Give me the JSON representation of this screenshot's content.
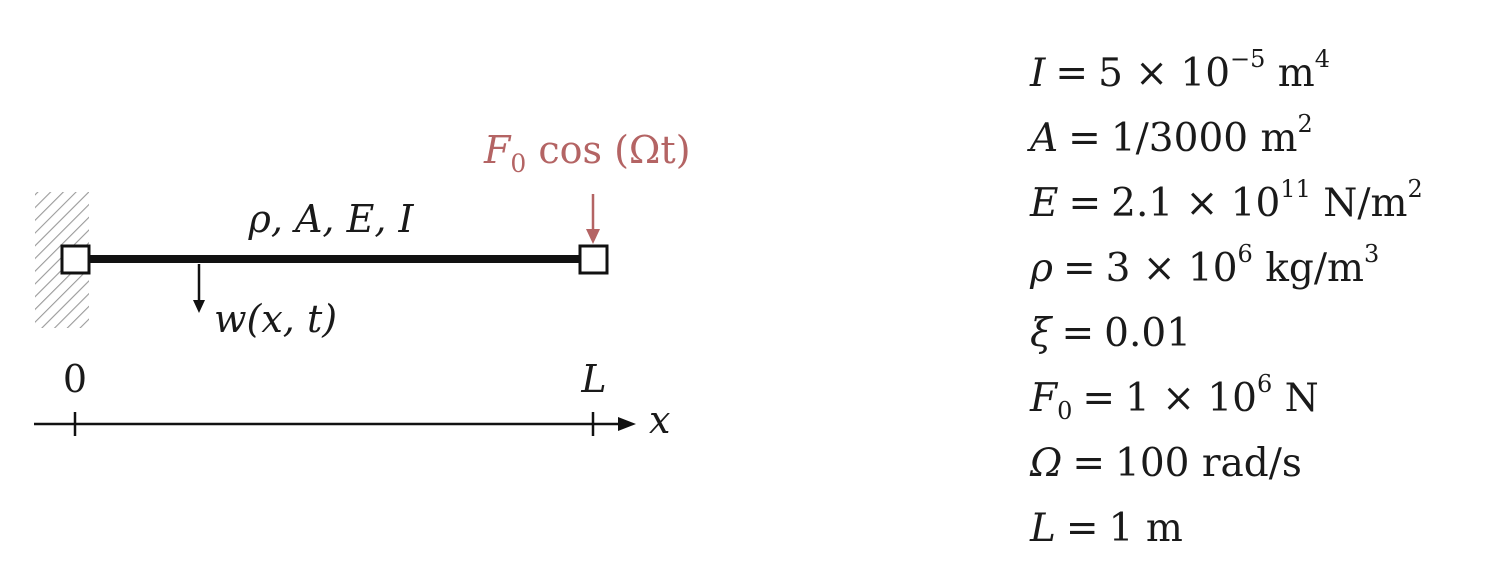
{
  "diagram": {
    "beam_properties": "ρ, A, E, I",
    "load_label": {
      "symbol": "F",
      "subscript": "0",
      "expr": " cos (Ωt)"
    },
    "deflection_label": "w(x, t)",
    "axis_start": "0",
    "axis_end": "L",
    "axis_var": "x",
    "load_color": "#b46464"
  },
  "parameters": [
    {
      "lhs": "I",
      "lhs_sub": "",
      "rhs": "5 × 10",
      "sup": "−5",
      "unit": " m",
      "unit_sup": "4"
    },
    {
      "lhs": "A",
      "lhs_sub": "",
      "rhs": "1/3000",
      "sup": "",
      "unit": " m",
      "unit_sup": "2"
    },
    {
      "lhs": "E",
      "lhs_sub": "",
      "rhs": "2.1 × 10",
      "sup": "11",
      "unit": " N/m",
      "unit_sup": "2"
    },
    {
      "lhs": "ρ",
      "lhs_sub": "",
      "rhs": "3 × 10",
      "sup": "6",
      "unit": " kg/m",
      "unit_sup": "3"
    },
    {
      "lhs": "ξ",
      "lhs_sub": "",
      "rhs": "0.01",
      "sup": "",
      "unit": "",
      "unit_sup": ""
    },
    {
      "lhs": "F",
      "lhs_sub": "0",
      "rhs": "1 × 10",
      "sup": "6",
      "unit": " N",
      "unit_sup": ""
    },
    {
      "lhs": "Ω",
      "lhs_sub": "",
      "rhs": "100",
      "sup": "",
      "unit": " rad/s",
      "unit_sup": ""
    },
    {
      "lhs": "L",
      "lhs_sub": "",
      "rhs": "1",
      "sup": "",
      "unit": " m",
      "unit_sup": ""
    }
  ]
}
